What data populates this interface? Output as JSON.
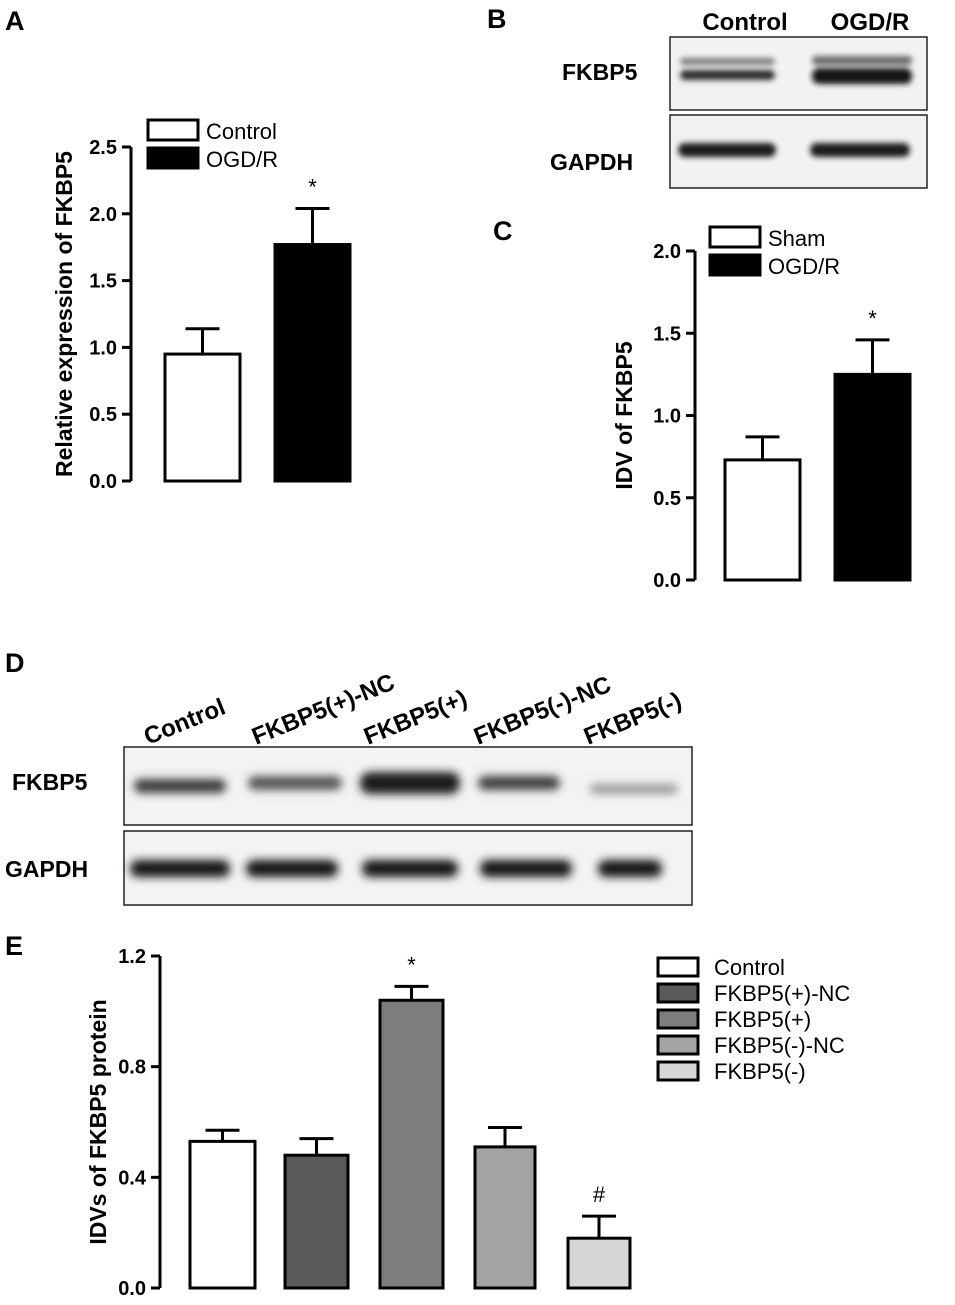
{
  "panels": {
    "A": {
      "letter": "A"
    },
    "B": {
      "letter": "B"
    },
    "C": {
      "letter": "C"
    },
    "D": {
      "letter": "D"
    },
    "E": {
      "letter": "E"
    }
  },
  "blot_B": {
    "lanes": [
      "Control",
      "OGD/R"
    ],
    "rows": [
      "FKBP5",
      "GAPDH"
    ]
  },
  "blot_D": {
    "lanes": [
      "Control",
      "FKBP5(+)-NC",
      "FKBP5(+)",
      "FKBP5(-)-NC",
      "FKBP5(-)"
    ],
    "rows": [
      "FKBP5",
      "GAPDH"
    ]
  },
  "chart_data": [
    {
      "panel": "A",
      "type": "bar",
      "ylabel": "Relative expression of FKBP5",
      "ylim": [
        0,
        2.5
      ],
      "yticks": [
        "0.0",
        "0.5",
        "1.0",
        "1.5",
        "2.0",
        "2.5"
      ],
      "categories": [
        "Control",
        "OGD/R"
      ],
      "values": [
        0.95,
        1.77
      ],
      "errors": [
        0.19,
        0.27
      ],
      "fills": [
        "#ffffff",
        "#000000"
      ],
      "annotations": [
        "",
        "*"
      ],
      "legend": [
        "Control",
        "OGD/R"
      ],
      "legend_position": "top"
    },
    {
      "panel": "C",
      "type": "bar",
      "ylabel": "IDV of FKBP5",
      "ylim": [
        0,
        2.0
      ],
      "yticks": [
        "0.0",
        "0.5",
        "1.0",
        "1.5",
        "2.0"
      ],
      "categories": [
        "Sham",
        "OGD/R"
      ],
      "values": [
        0.73,
        1.25
      ],
      "errors": [
        0.14,
        0.21
      ],
      "fills": [
        "#ffffff",
        "#000000"
      ],
      "annotations": [
        "",
        "*"
      ],
      "legend": [
        "Sham",
        "OGD/R"
      ],
      "legend_position": "top"
    },
    {
      "panel": "E",
      "type": "bar",
      "ylabel": "IDVs of FKBP5 protein",
      "ylim": [
        0,
        1.2
      ],
      "yticks": [
        "0.0",
        "0.4",
        "0.8",
        "1.2"
      ],
      "categories": [
        "Control",
        "FKBP5(+)-NC",
        "FKBP5(+)",
        "FKBP5(-)-NC",
        "FKBP5(-)"
      ],
      "values": [
        0.53,
        0.48,
        1.04,
        0.51,
        0.18
      ],
      "errors": [
        0.04,
        0.06,
        0.05,
        0.07,
        0.08
      ],
      "fills": [
        "#ffffff",
        "#5a5a5a",
        "#7d7d7d",
        "#a3a3a3",
        "#d6d6d6"
      ],
      "annotations": [
        "",
        "",
        "*",
        "",
        "#"
      ],
      "legend": [
        "Control",
        "FKBP5(+)-NC",
        "FKBP5(+)",
        "FKBP5(-)-NC",
        "FKBP5(-)"
      ],
      "legend_position": "right"
    }
  ]
}
